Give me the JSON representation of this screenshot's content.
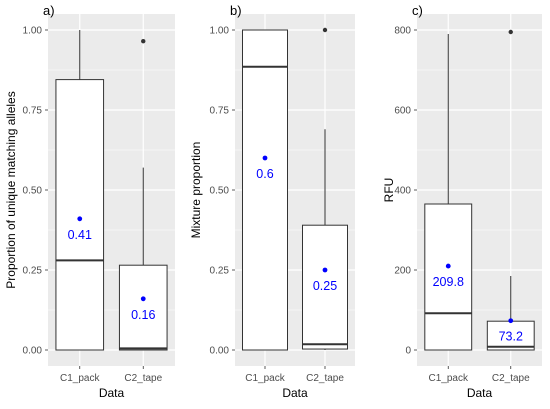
{
  "chart_data": [
    {
      "type": "box",
      "panel_label": "a)",
      "xlabel": "Data",
      "ylabel": "Proportion of unique matching alleles",
      "ylim": [
        -0.05,
        1.05
      ],
      "yticks": [
        0.0,
        0.25,
        0.5,
        0.75,
        1.0
      ],
      "ytick_labels": [
        "0.00",
        "0.25",
        "0.50",
        "0.75",
        "1.00"
      ],
      "categories": [
        "C1_pack",
        "C2_tape"
      ],
      "boxes": [
        {
          "category": "C1_pack",
          "min": 0.0,
          "q1": 0.0,
          "median": 0.28,
          "q3": 0.845,
          "max": 1.0,
          "outliers": [],
          "mean": 0.41,
          "mean_label": "0.41"
        },
        {
          "category": "C2_tape",
          "min": 0.0,
          "q1": 0.0,
          "median": 0.005,
          "q3": 0.265,
          "max": 0.57,
          "outliers": [
            0.965
          ],
          "mean": 0.16,
          "mean_label": "0.16"
        }
      ],
      "grid": true
    },
    {
      "type": "box",
      "panel_label": "b)",
      "xlabel": "Data",
      "ylabel": "Mixture proportion",
      "ylim": [
        -0.05,
        1.05
      ],
      "yticks": [
        0.0,
        0.25,
        0.5,
        0.75,
        1.0
      ],
      "ytick_labels": [
        "0.00",
        "0.25",
        "0.50",
        "0.75",
        "1.00"
      ],
      "categories": [
        "C1_pack",
        "C2_tape"
      ],
      "boxes": [
        {
          "category": "C1_pack",
          "min": 0.0,
          "q1": 0.0,
          "median": 0.885,
          "q3": 1.0,
          "max": 1.0,
          "outliers": [],
          "mean": 0.6,
          "mean_label": "0.6"
        },
        {
          "category": "C2_tape",
          "min": 0.0,
          "q1": 0.003,
          "median": 0.018,
          "q3": 0.39,
          "max": 0.69,
          "outliers": [
            1.0
          ],
          "mean": 0.25,
          "mean_label": "0.25"
        }
      ],
      "grid": true
    },
    {
      "type": "box",
      "panel_label": "c)",
      "xlabel": "Data",
      "ylabel": "RFU",
      "ylim": [
        -40,
        840
      ],
      "yticks": [
        0,
        200,
        400,
        600,
        800
      ],
      "ytick_labels": [
        "0",
        "200",
        "400",
        "600",
        "800"
      ],
      "categories": [
        "C1_pack",
        "C2_tape"
      ],
      "boxes": [
        {
          "category": "C1_pack",
          "min": 0,
          "q1": 0,
          "median": 92,
          "q3": 365,
          "max": 790,
          "outliers": [],
          "mean": 209.8,
          "mean_label": "209.8"
        },
        {
          "category": "C2_tape",
          "min": 0,
          "q1": 0,
          "median": 8,
          "q3": 72,
          "max": 185,
          "outliers": [
            795
          ],
          "mean": 73.2,
          "mean_label": "73.2"
        }
      ],
      "grid": true
    }
  ],
  "colors": {
    "panel_bg": "#ebebeb",
    "grid_major": "#ffffff",
    "box_fill": "#ffffff",
    "box_stroke": "#333333",
    "mean_point": "#0000ff",
    "mean_label": "#0000ff",
    "outlier": "#333333",
    "tick_text": "#4d4d4d",
    "axis_title": "#000000"
  }
}
